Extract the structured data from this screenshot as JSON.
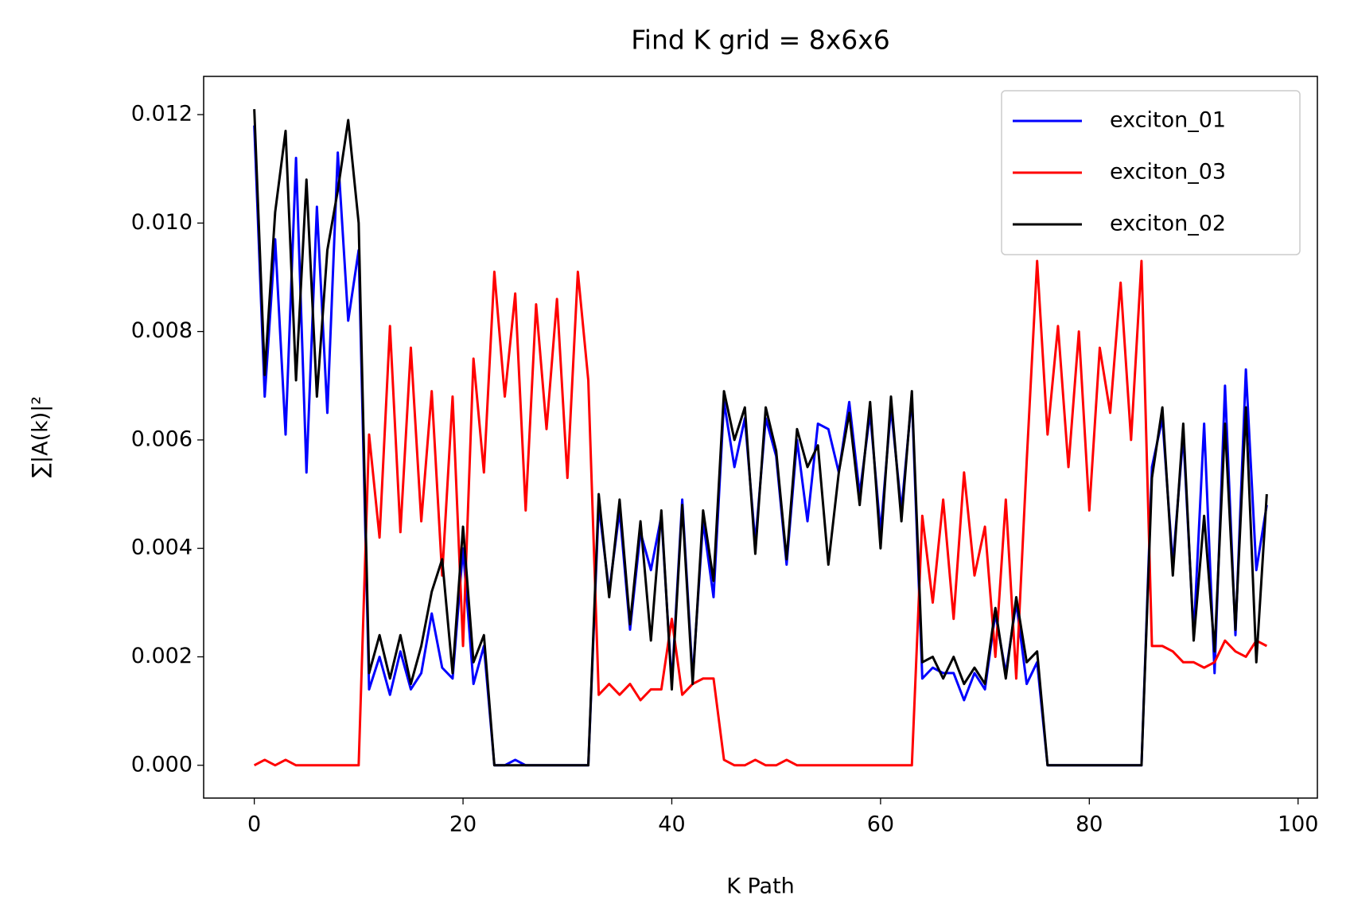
{
  "chart_data": {
    "type": "line",
    "title": "Find K grid = 8x6x6",
    "x_label": "K Path",
    "y_label": "∑|A(k)|²",
    "x": [
      0,
      1,
      2,
      3,
      4,
      5,
      6,
      7,
      8,
      9,
      10,
      11,
      12,
      13,
      14,
      15,
      16,
      17,
      18,
      19,
      20,
      21,
      22,
      23,
      24,
      25,
      26,
      27,
      28,
      29,
      30,
      31,
      32,
      33,
      34,
      35,
      36,
      37,
      38,
      39,
      40,
      41,
      42,
      43,
      44,
      45,
      46,
      47,
      48,
      49,
      50,
      51,
      52,
      53,
      54,
      55,
      56,
      57,
      58,
      59,
      60,
      61,
      62,
      63,
      64,
      65,
      66,
      67,
      68,
      69,
      70,
      71,
      72,
      73,
      74,
      75,
      76,
      77,
      78,
      79,
      80,
      81,
      82,
      83,
      84,
      85,
      86,
      87,
      88,
      89,
      90,
      91,
      92,
      93,
      94,
      95,
      96,
      97
    ],
    "series": [
      {
        "name": "exciton_01",
        "color": "#0000ff",
        "values": [
          0.0118,
          0.0068,
          0.0097,
          0.0061,
          0.0112,
          0.0054,
          0.0103,
          0.0065,
          0.0113,
          0.0082,
          0.0095,
          0.0014,
          0.002,
          0.0013,
          0.0021,
          0.0014,
          0.0017,
          0.0028,
          0.0018,
          0.0016,
          0.004,
          0.0015,
          0.0022,
          0,
          0,
          0.0001,
          0,
          0,
          0,
          0,
          0,
          0,
          0,
          0.0048,
          0.0032,
          0.0047,
          0.0025,
          0.0043,
          0.0036,
          0.0046,
          0.0015,
          0.0049,
          0.0016,
          0.0045,
          0.0031,
          0.0067,
          0.0055,
          0.0064,
          0.0041,
          0.0064,
          0.0057,
          0.0037,
          0.006,
          0.0045,
          0.0063,
          0.0062,
          0.0054,
          0.0067,
          0.005,
          0.0065,
          0.0043,
          0.0066,
          0.0047,
          0.0068,
          0.0016,
          0.0018,
          0.0017,
          0.0017,
          0.0012,
          0.0017,
          0.0014,
          0.0028,
          0.0017,
          0.003,
          0.0015,
          0.0019,
          0,
          0,
          0,
          0,
          0,
          0,
          0,
          0,
          0,
          0,
          0.0055,
          0.0064,
          0.0037,
          0.0061,
          0.0024,
          0.0063,
          0.0017,
          0.007,
          0.0024,
          0.0073,
          0.0036,
          0.0048
        ]
      },
      {
        "name": "exciton_03",
        "color": "#ff0000",
        "values": [
          0,
          0.0001,
          0,
          0.0001,
          0,
          0,
          0,
          0,
          0,
          0,
          0,
          0.0061,
          0.0042,
          0.0081,
          0.0043,
          0.0077,
          0.0045,
          0.0069,
          0.0035,
          0.0068,
          0.0022,
          0.0075,
          0.0054,
          0.0091,
          0.0068,
          0.0087,
          0.0047,
          0.0085,
          0.0062,
          0.0086,
          0.0053,
          0.0091,
          0.0071,
          0.0013,
          0.0015,
          0.0013,
          0.0015,
          0.0012,
          0.0014,
          0.0014,
          0.0027,
          0.0013,
          0.0015,
          0.0016,
          0.0016,
          0.0001,
          0,
          0,
          0.0001,
          0,
          0,
          0.0001,
          0,
          0,
          0,
          0,
          0,
          0,
          0,
          0,
          0,
          0,
          0,
          0,
          0.0046,
          0.003,
          0.0049,
          0.0027,
          0.0054,
          0.0035,
          0.0044,
          0.002,
          0.0049,
          0.0016,
          0.0056,
          0.0093,
          0.0061,
          0.0081,
          0.0055,
          0.008,
          0.0047,
          0.0077,
          0.0065,
          0.0089,
          0.006,
          0.0093,
          0.0022,
          0.0022,
          0.0021,
          0.0019,
          0.0019,
          0.0018,
          0.0019,
          0.0023,
          0.0021,
          0.002,
          0.0023,
          0.0022
        ]
      },
      {
        "name": "exciton_02",
        "color": "#000000",
        "values": [
          0.0121,
          0.0072,
          0.0102,
          0.0117,
          0.0071,
          0.0108,
          0.0068,
          0.0095,
          0.0106,
          0.0119,
          0.01,
          0.0017,
          0.0024,
          0.0016,
          0.0024,
          0.0015,
          0.0022,
          0.0032,
          0.0038,
          0.0017,
          0.0044,
          0.0019,
          0.0024,
          0,
          0,
          0,
          0,
          0,
          0,
          0,
          0,
          0,
          0,
          0.005,
          0.0031,
          0.0049,
          0.0026,
          0.0045,
          0.0023,
          0.0047,
          0.0014,
          0.0048,
          0.0015,
          0.0047,
          0.0034,
          0.0069,
          0.006,
          0.0066,
          0.0039,
          0.0066,
          0.0058,
          0.0038,
          0.0062,
          0.0055,
          0.0059,
          0.0037,
          0.0054,
          0.0065,
          0.0048,
          0.0067,
          0.004,
          0.0068,
          0.0045,
          0.0069,
          0.0019,
          0.002,
          0.0016,
          0.002,
          0.0015,
          0.0018,
          0.0015,
          0.0029,
          0.0016,
          0.0031,
          0.0019,
          0.0021,
          0,
          0,
          0,
          0,
          0,
          0,
          0,
          0,
          0,
          0,
          0.0053,
          0.0066,
          0.0035,
          0.0063,
          0.0023,
          0.0046,
          0.0021,
          0.0063,
          0.0025,
          0.0066,
          0.0019,
          0.005
        ]
      }
    ],
    "xlim": [
      -4.85,
      101.85
    ],
    "xticks": [
      0,
      20,
      40,
      60,
      80,
      100
    ],
    "ylim": [
      -0.000605,
      0.012705
    ],
    "yticks": [
      {
        "value": 0,
        "label": "0.000"
      },
      {
        "value": 0.002,
        "label": "0.002"
      },
      {
        "value": 0.004,
        "label": "0.004"
      },
      {
        "value": 0.006,
        "label": "0.006"
      },
      {
        "value": 0.008,
        "label": "0.008"
      },
      {
        "value": 0.01,
        "label": "0.010"
      },
      {
        "value": 0.012,
        "label": "0.012"
      }
    ],
    "legend": "upper right",
    "grid": false
  }
}
